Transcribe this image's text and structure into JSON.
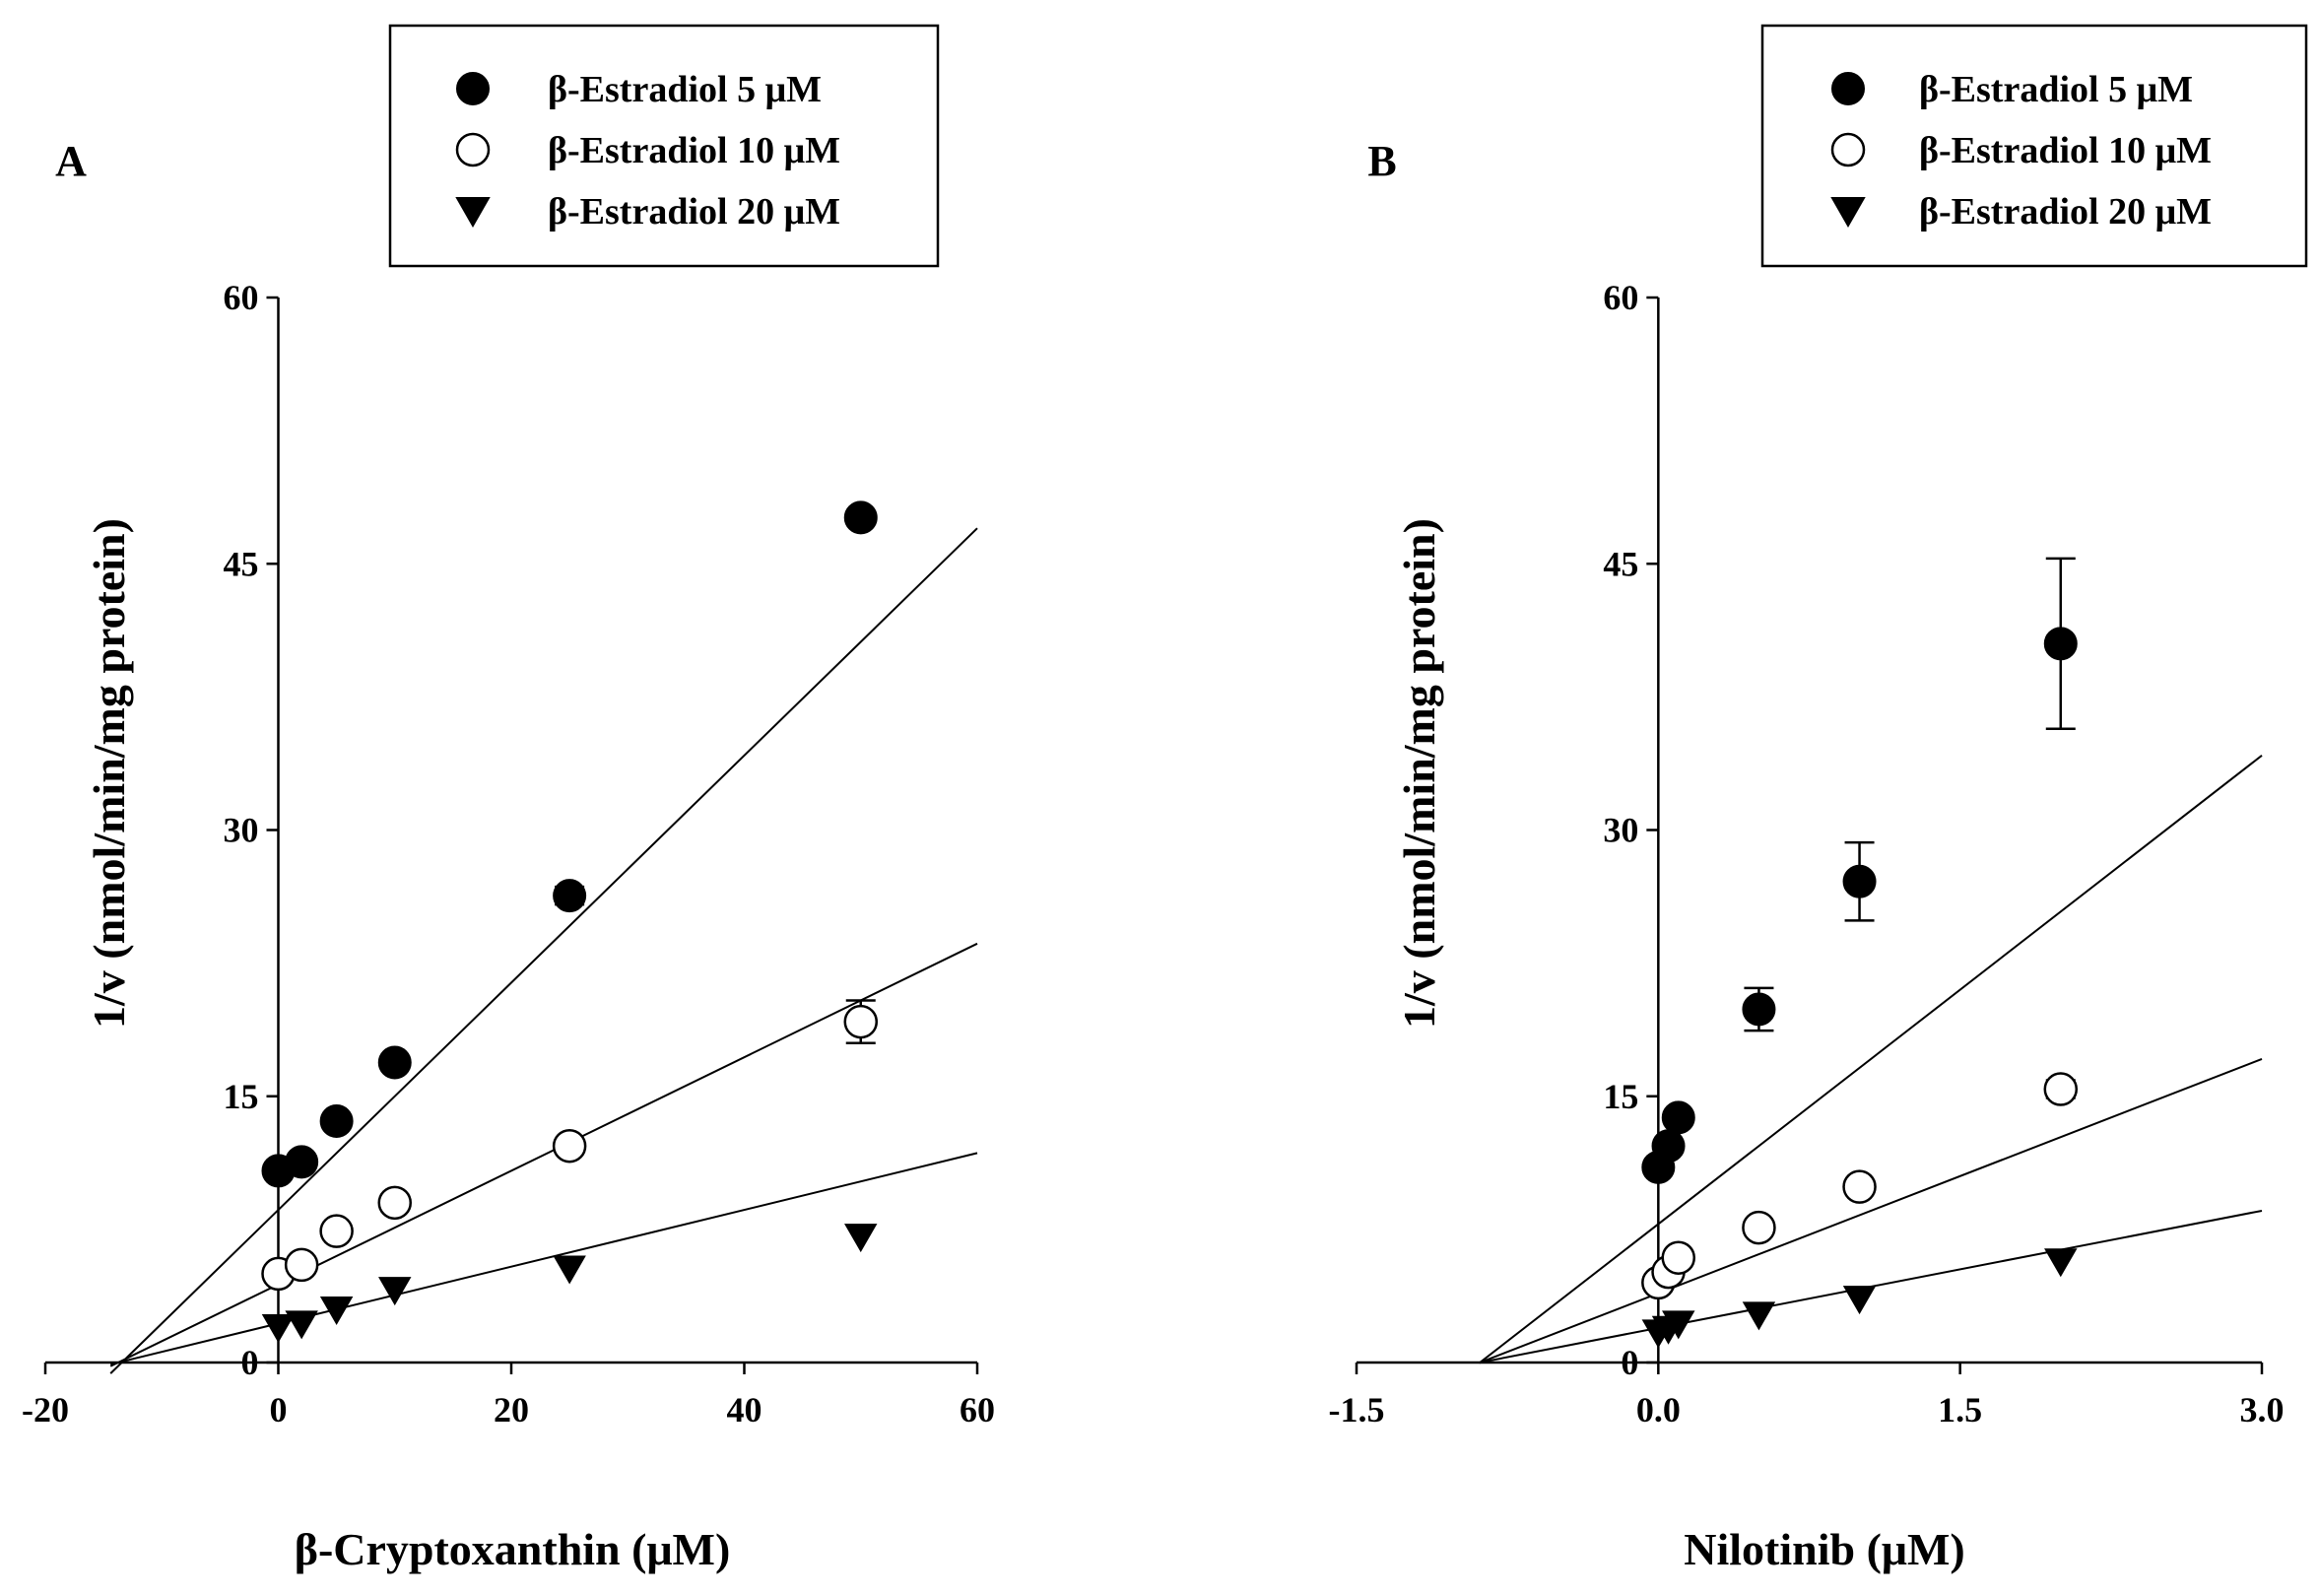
{
  "chart_data": [
    {
      "type": "scatter",
      "panel_label": "A",
      "xlabel": "β-Cryptoxanthin (μM)",
      "ylabel": "1/v (nmol/min/mg protein)",
      "xlim": [
        -20,
        60
      ],
      "ylim": [
        0,
        60
      ],
      "xticks": [
        -20,
        0,
        20,
        40,
        60
      ],
      "xtick_labels": [
        "-20",
        "0",
        "20",
        "40",
        "60"
      ],
      "yticks": [
        0,
        15,
        30,
        45,
        60
      ],
      "ytick_labels": [
        "0",
        "15",
        "30",
        "45",
        "60"
      ],
      "legend_position": "top-right",
      "series": [
        {
          "name": "β-Estradiol 5 μM",
          "marker": "filled-circle",
          "x": [
            0,
            2,
            5,
            10,
            25,
            50
          ],
          "y": [
            10.8,
            11.3,
            13.6,
            16.9,
            26.3,
            47.6
          ],
          "err": [
            0,
            0,
            0,
            0,
            0.5,
            0
          ],
          "fit": {
            "slope": 0.64,
            "intercept": 8.6
          }
        },
        {
          "name": "β-Estradiol 10 μM",
          "marker": "open-circle",
          "x": [
            0,
            2,
            5,
            10,
            25,
            50
          ],
          "y": [
            5.0,
            5.5,
            7.4,
            9.0,
            12.2,
            19.2
          ],
          "err": [
            0,
            0,
            0,
            0,
            0,
            1.2
          ],
          "fit": {
            "slope": 0.32,
            "intercept": 4.4
          }
        },
        {
          "name": "β-Estradiol 20 μM",
          "marker": "filled-triangle-down",
          "x": [
            0,
            2,
            5,
            10,
            25,
            50
          ],
          "y": [
            2.0,
            2.2,
            3.0,
            4.1,
            5.3,
            7.1
          ],
          "err": [
            0,
            0,
            0,
            0,
            0,
            0
          ],
          "fit": {
            "slope": 0.16,
            "intercept": 2.2
          }
        }
      ],
      "fit_x_range": [
        -14.4,
        60
      ]
    },
    {
      "type": "scatter",
      "panel_label": "B",
      "xlabel": "Nilotinib (μM)",
      "ylabel": "1/v (nmol/min/mg protein)",
      "xlim": [
        -1.5,
        3.0
      ],
      "ylim": [
        0,
        60
      ],
      "xticks": [
        -1.5,
        0,
        1.5,
        3.0
      ],
      "xtick_labels": [
        "-1.5",
        "0.0",
        "1.5",
        "3.0"
      ],
      "yticks": [
        0,
        15,
        30,
        45,
        60
      ],
      "ytick_labels": [
        "0",
        "15",
        "30",
        "45",
        "60"
      ],
      "legend_position": "top-right",
      "series": [
        {
          "name": "β-Estradiol 5 μM",
          "marker": "filled-circle",
          "x": [
            0,
            0.05,
            0.1,
            0.5,
            1,
            2
          ],
          "y": [
            11.0,
            12.2,
            13.8,
            19.9,
            27.1,
            40.5
          ],
          "err": [
            0,
            0,
            0,
            1.2,
            2.2,
            4.8
          ],
          "fit": {
            "slope": 8.8,
            "intercept": 7.8
          }
        },
        {
          "name": "β-Estradiol 10 μM",
          "marker": "open-circle",
          "x": [
            0,
            0.05,
            0.1,
            0.5,
            1,
            2
          ],
          "y": [
            4.5,
            5.1,
            5.9,
            7.6,
            9.9,
            15.4
          ],
          "err": [
            0,
            0,
            0,
            0,
            0,
            0.5
          ],
          "fit": {
            "slope": 4.4,
            "intercept": 3.9
          }
        },
        {
          "name": "β-Estradiol 20 μM",
          "marker": "filled-triangle-down",
          "x": [
            0,
            0.05,
            0.1,
            0.5,
            1,
            2
          ],
          "y": [
            1.7,
            1.9,
            2.2,
            2.7,
            3.6,
            5.7
          ],
          "err": [
            0,
            0,
            0,
            0,
            0,
            0
          ],
          "fit": {
            "slope": 2.2,
            "intercept": 1.95
          }
        }
      ],
      "fit_x_range": [
        -0.89,
        3.0
      ]
    }
  ]
}
